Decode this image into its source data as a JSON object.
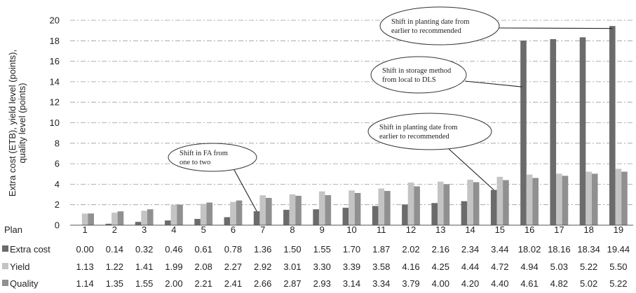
{
  "chart_data": {
    "type": "bar",
    "ylabel_lines": [
      "Extra cost (ETB), yield level (points),",
      "quality level (points)"
    ],
    "ylim": [
      0,
      20
    ],
    "yticks": [
      0,
      2,
      4,
      6,
      8,
      10,
      12,
      14,
      16,
      18,
      20
    ],
    "grid": true,
    "table_header": "Plan",
    "categories": [
      "1",
      "2",
      "3",
      "4",
      "5",
      "6",
      "7",
      "8",
      "9",
      "10",
      "11",
      "12",
      "13",
      "14",
      "15",
      "16",
      "17",
      "18",
      "19"
    ],
    "series": [
      {
        "name": "Extra cost",
        "color": "#6b6b6b",
        "labels": [
          "0.00",
          "0.14",
          "0.32",
          "0.46",
          "0.61",
          "0.78",
          "1.36",
          "1.50",
          "1.55",
          "1.70",
          "1.87",
          "2.02",
          "2.16",
          "2.34",
          "3.44",
          "18.02",
          "18.16",
          "18.34",
          "19.44"
        ],
        "values": [
          0.0,
          0.14,
          0.32,
          0.46,
          0.61,
          0.78,
          1.36,
          1.5,
          1.55,
          1.7,
          1.87,
          2.02,
          2.16,
          2.34,
          3.44,
          18.02,
          18.16,
          18.34,
          19.44
        ]
      },
      {
        "name": "Yield",
        "color": "#c4c4c4",
        "labels": [
          "1.13",
          "1.22",
          "1.41",
          "1.99",
          "2.08",
          "2.27",
          "2.92",
          "3.01",
          "3.30",
          "3.39",
          "3.58",
          "4.16",
          "4.25",
          "4.44",
          "4.72",
          "4.94",
          "5.03",
          "5.22",
          "5.50"
        ],
        "values": [
          1.13,
          1.22,
          1.41,
          1.99,
          2.08,
          2.27,
          2.92,
          3.01,
          3.3,
          3.39,
          3.58,
          4.16,
          4.25,
          4.44,
          4.72,
          4.94,
          5.03,
          5.22,
          5.5
        ]
      },
      {
        "name": "Quality",
        "color": "#909090",
        "labels": [
          "1.14",
          "1.35",
          "1.55",
          "2.00",
          "2.21",
          "2.41",
          "2.66",
          "2.87",
          "2.93",
          "3.14",
          "3.34",
          "3.79",
          "4.00",
          "4.20",
          "4.40",
          "4.61",
          "4.82",
          "5.02",
          "5.22"
        ],
        "values": [
          1.14,
          1.35,
          1.55,
          2.0,
          2.21,
          2.41,
          2.66,
          2.87,
          2.93,
          3.14,
          3.34,
          3.79,
          4.0,
          4.2,
          4.4,
          4.61,
          4.82,
          5.02,
          5.22
        ]
      }
    ],
    "annotations": [
      {
        "lines": [
          "Shift in FA from",
          "one to two"
        ],
        "plan": 7
      },
      {
        "lines": [
          "Shift in planting date from",
          "earlier to recommended"
        ],
        "plan": 15
      },
      {
        "lines": [
          "Shift in storage method",
          "from local to DLS"
        ],
        "plan": 16
      },
      {
        "lines": [
          "Shift in planting date from",
          "earlier to recommended"
        ],
        "plan": 19
      }
    ]
  }
}
